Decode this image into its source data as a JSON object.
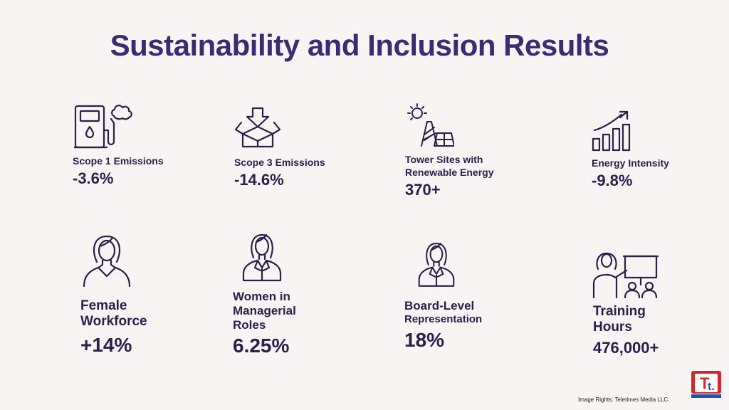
{
  "title": "Sustainability and Inclusion Results",
  "stats": {
    "scope1": {
      "label": "Scope 1 Emissions",
      "value": "-3.6%",
      "icon": "fuel-pump-emission-icon"
    },
    "scope3": {
      "label": "Scope 3 Emissions",
      "value": "-14.6%",
      "icon": "box-arrow-icon"
    },
    "tower": {
      "label_line1": "Tower Sites with",
      "label_line2": "Renewable Energy",
      "value": "370+",
      "icon": "solar-tower-icon"
    },
    "energy": {
      "label": "Energy Intensity",
      "value": "-9.8%",
      "icon": "bar-growth-icon"
    },
    "female": {
      "label_line1": "Female",
      "label_line2": "Workforce",
      "value": "+14%",
      "icon": "woman-icon"
    },
    "women_mgr": {
      "label_line1": "Women in",
      "label_line2": "Managerial",
      "label_line3": "Roles",
      "value": "6.25%",
      "icon": "businesswoman-icon"
    },
    "board": {
      "label_line1": "Board-Level",
      "label_line2": "Representation",
      "value": "18%",
      "icon": "businesswoman-icon"
    },
    "training": {
      "label_line1": "Training",
      "label_line2": "Hours",
      "value": "476,000+",
      "icon": "presentation-icon"
    }
  },
  "credit": "Image Rights: Teletimes Media LLC.",
  "colors": {
    "background": "#f9f4f4",
    "title": "#3a2c72",
    "text": "#2a2149",
    "logo_red": "#d7262b",
    "logo_blue": "#1e57a8"
  }
}
